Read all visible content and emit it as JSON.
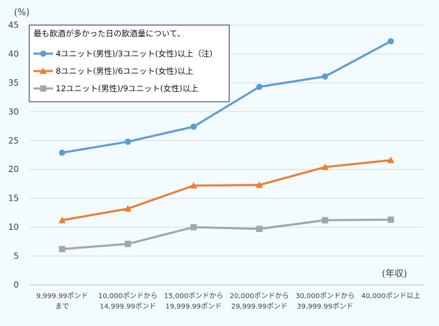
{
  "chart_data": {
    "type": "line",
    "y_unit_label": "(%)",
    "x_unit_label": "(年収)",
    "ylim": [
      0,
      45
    ],
    "yticks": [
      "0",
      "5",
      "10",
      "15",
      "20",
      "25",
      "30",
      "35",
      "40",
      "45"
    ],
    "grid": true,
    "categories": [
      [
        "9,999.99ポンド",
        "まで"
      ],
      [
        "10,000ポンドから",
        "14,999.99ポンド"
      ],
      [
        "15,000ポンドから",
        "19,999.99ポンド"
      ],
      [
        "20,000ポンドから",
        "29,999.99ポンド"
      ],
      [
        "30,000ポンドから",
        "39,999.99ポンド"
      ],
      [
        "40,000ポンド以上"
      ]
    ],
    "legend": {
      "title": "最も飲酒が多かった日の飲酒量について、",
      "placement": "top-left"
    },
    "series": [
      {
        "name": "4ユニット(男性)/3ユニット(女性)以上（注)",
        "color": "#5b9bd5",
        "marker": "circle",
        "values": [
          22.9,
          24.8,
          27.4,
          34.3,
          36.1,
          42.2
        ]
      },
      {
        "name": "8ユニット(男性)/6ユニット(女性)以上",
        "color": "#ed7d31",
        "marker": "triangle",
        "values": [
          11.2,
          13.2,
          17.2,
          17.3,
          20.4,
          21.6
        ]
      },
      {
        "name": "12ユニット(男性)/9ユニット(女性)以上",
        "color": "#a5a5a5",
        "marker": "square",
        "values": [
          6.2,
          7.1,
          10.0,
          9.7,
          11.2,
          11.3
        ]
      }
    ]
  }
}
